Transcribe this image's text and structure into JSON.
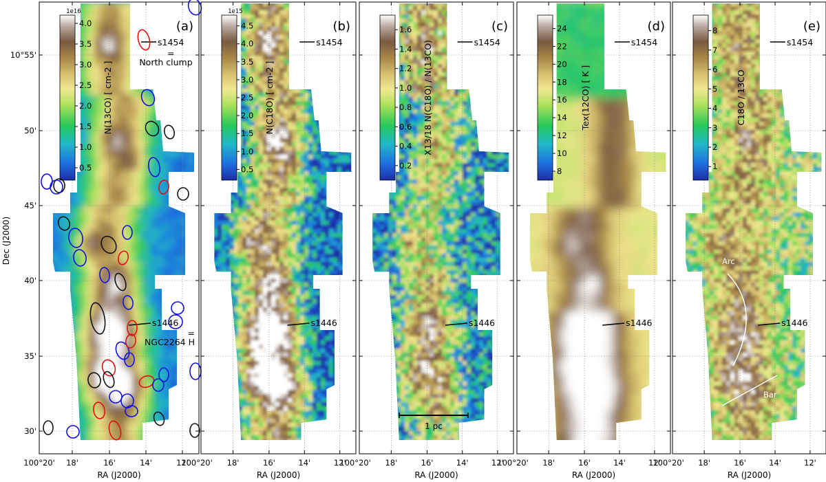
{
  "figure": {
    "axes": {
      "ylabel": "Dec (J2000)",
      "xlabel": "RA (J2000)",
      "xticks": [
        "100°20'",
        "18'",
        "16'",
        "14'",
        "12'"
      ],
      "yticks": [
        "10°55'",
        "50'",
        "45'",
        "40'",
        "35'",
        "30'"
      ]
    },
    "panels": [
      {
        "id": "a",
        "letter": "(a)",
        "cbar_label": "N(13CO)  [ cm-2 ]",
        "cbar_exp": "1e16",
        "cbar_ticks": [
          "4.0",
          "3.5",
          "3.0",
          "2.5",
          "2.0",
          "1.5",
          "1.0",
          "0.5"
        ],
        "cbar_range": [
          0.2,
          4.2
        ],
        "cmap": "earth",
        "s1454": {
          "label": "s1454",
          "extra": [
            "=",
            "North clump"
          ]
        },
        "s1446": {
          "label": "s1446",
          "extra": [
            "=",
            "NGC2264 H"
          ]
        }
      },
      {
        "id": "b",
        "letter": "(b)",
        "cbar_label": "N(C18O)  [ cm-2 ]",
        "cbar_exp": "1e15",
        "cbar_ticks": [
          "4.5",
          "4.0",
          "3.5",
          "3.0",
          "2.5",
          "2.0",
          "1.5",
          "1.0",
          "0.5"
        ],
        "cbar_range": [
          0.2,
          4.8
        ],
        "cmap": "earth",
        "s1454": {
          "label": "s1454"
        },
        "s1446": {
          "label": "s1446"
        }
      },
      {
        "id": "c",
        "letter": "(c)",
        "cbar_label": "X13/18  N(C18O) / N(13CO)",
        "cbar_exp": "",
        "cbar_ticks": [
          "1.6",
          "1.4",
          "1.2",
          "1.0",
          "0.8",
          "0.6",
          "0.4",
          "0.2"
        ],
        "cbar_range": [
          0.05,
          1.75
        ],
        "cmap": "earth",
        "scalebar": "1 pc",
        "s1454": {
          "label": "s1454"
        },
        "s1446": {
          "label": "s1446"
        }
      },
      {
        "id": "d",
        "letter": "(d)",
        "cbar_label": "Tex(12CO)  [ K ]",
        "cbar_exp": "",
        "cbar_ticks": [
          "24",
          "22",
          "20",
          "18",
          "16",
          "14",
          "12",
          "10",
          "8"
        ],
        "cbar_range": [
          7,
          25.5
        ],
        "cmap": "earth",
        "s1454": {
          "label": "s1454"
        },
        "s1446": {
          "label": "s1446"
        }
      },
      {
        "id": "e",
        "letter": "(e)",
        "cbar_label": "C18O / 13CO",
        "cbar_exp": "",
        "cbar_ticks": [
          "8",
          "7",
          "6",
          "5",
          "4",
          "3",
          "2",
          "1"
        ],
        "cbar_range": [
          0.3,
          8.8
        ],
        "cmap": "earth",
        "arc_label": "Arc",
        "bar_label": "Bar",
        "s1454": {
          "label": "s1454"
        },
        "s1446": {
          "label": "s1446"
        }
      }
    ],
    "ellipse_colors": {
      "blue": "#1010e0",
      "red": "#e01010",
      "black": "#111111"
    },
    "colormap_stops": [
      "#1c2fa8",
      "#1f6fe0",
      "#20b8c8",
      "#25c85a",
      "#a8e05a",
      "#f0e890",
      "#d8c070",
      "#a88848",
      "#7a5a40",
      "#b8a8a0",
      "#ffffff"
    ]
  }
}
